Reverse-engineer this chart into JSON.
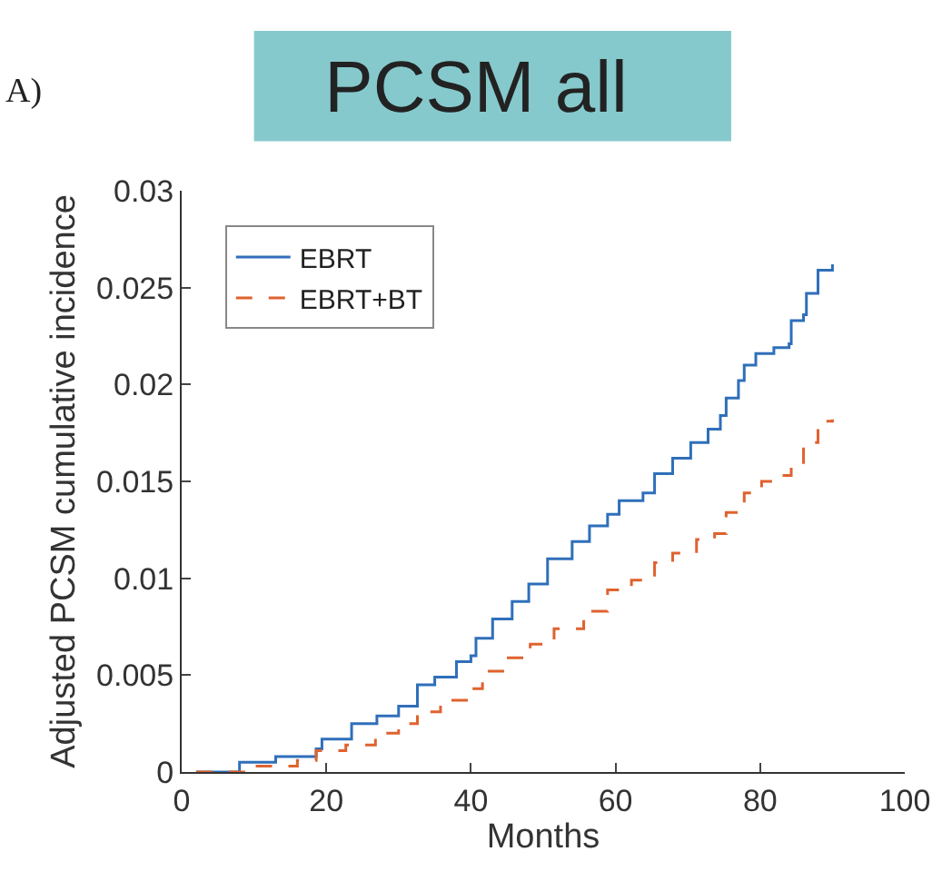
{
  "chart_data": {
    "type": "step",
    "title": "PCSM all",
    "xlabel": "Months",
    "ylabel": "Adjusted PCSM cumulative incidence",
    "annotations": [
      "A)"
    ],
    "xlim": [
      0,
      100
    ],
    "xticks": [
      0,
      20,
      40,
      60,
      80,
      100
    ],
    "ylim": [
      0,
      0.03
    ],
    "yticks": [
      0,
      0.005,
      0.01,
      0.015,
      0.02,
      0.025,
      0.03
    ],
    "legend": "top left",
    "series": [
      {
        "name": "EBRT",
        "color": "#2f6fba",
        "line_style": "solid",
        "x": [
          2,
          8,
          13,
          18.6,
          19.4,
          23.5,
          27,
          30,
          32.6,
          35,
          38,
          40,
          40.7,
          43,
          45.7,
          48,
          50.6,
          54,
          56.4,
          58.9,
          60.5,
          63.8,
          65.4,
          67.9,
          70.4,
          72.8,
          74.5,
          75.3,
          77,
          77.8,
          79.4,
          81.9,
          84,
          84.3,
          86,
          86.4,
          88,
          90
        ],
        "values": [
          0,
          0.0005,
          0.0008,
          0.0012,
          0.0017,
          0.0025,
          0.0029,
          0.0034,
          0.0045,
          0.0049,
          0.0057,
          0.006,
          0.0069,
          0.0079,
          0.0088,
          0.0097,
          0.011,
          0.0119,
          0.0127,
          0.0133,
          0.014,
          0.0144,
          0.0154,
          0.0162,
          0.017,
          0.0177,
          0.0184,
          0.0193,
          0.0202,
          0.021,
          0.0216,
          0.0219,
          0.0221,
          0.0233,
          0.0236,
          0.0247,
          0.0259,
          0.0262
        ]
      },
      {
        "name": "EBRT+BT",
        "color": "#e0622f",
        "line_style": "dashed",
        "x": [
          2,
          9.6,
          16,
          18.6,
          22.7,
          26.8,
          30,
          32.6,
          35.8,
          40,
          41.6,
          44.9,
          48.2,
          51.5,
          55.6,
          58.9,
          62.2,
          65.4,
          67.9,
          71.2,
          73.7,
          75.3,
          77.8,
          80.2,
          83.1,
          84.3,
          86,
          88,
          90
        ],
        "values": [
          0,
          0.0003,
          0.0006,
          0.0011,
          0.0014,
          0.002,
          0.0025,
          0.0031,
          0.0037,
          0.0043,
          0.0052,
          0.0059,
          0.0066,
          0.0074,
          0.0083,
          0.0094,
          0.0099,
          0.0108,
          0.0113,
          0.012,
          0.0123,
          0.0134,
          0.0144,
          0.015,
          0.0153,
          0.0159,
          0.017,
          0.0181,
          0.0182
        ]
      }
    ]
  }
}
